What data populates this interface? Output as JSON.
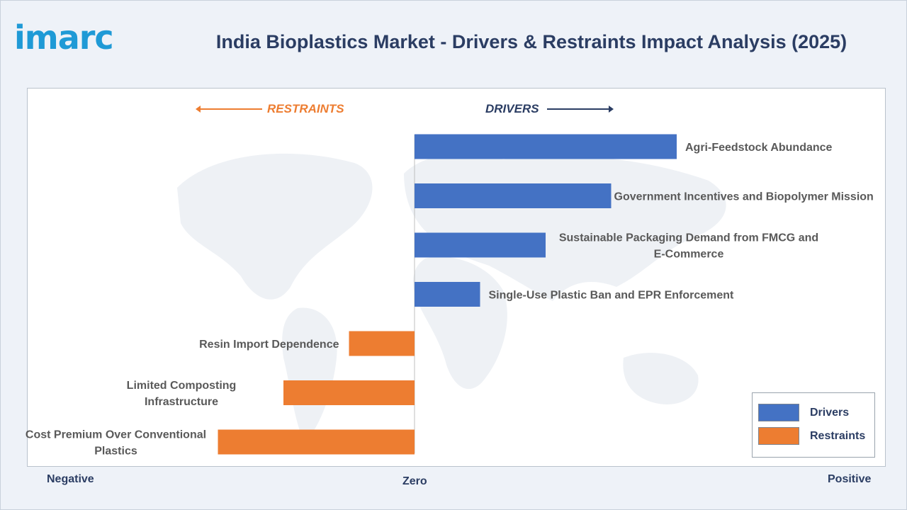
{
  "logo": {
    "text": "imarc"
  },
  "header": {
    "title": "India Bioplastics Market - Drivers & Restraints Impact Analysis (2025)"
  },
  "directions": {
    "restraints": "RESTRAINTS",
    "drivers": "DRIVERS"
  },
  "axis": {
    "negative": "Negative",
    "zero": "Zero",
    "positive": "Positive"
  },
  "legend": {
    "drivers": "Drivers",
    "restraints": "Restraints"
  },
  "colors": {
    "drivers": "#4472c4",
    "restraints": "#ed7d31",
    "text": "#2b3d63",
    "label": "#595959"
  },
  "chart_data": {
    "type": "bar",
    "orientation": "horizontal",
    "title": "India Bioplastics Market - Drivers & Restraints Impact Analysis (2025)",
    "xlabel": "",
    "ylabel": "",
    "xlim": [
      -3,
      5
    ],
    "legend_position": "bottom-right",
    "grid": false,
    "categories": [
      "Agri-Feedstock Abundance",
      "Government Incentives and Biopolymer Mission",
      "Sustainable Packaging Demand from FMCG and E-Commerce",
      "Single-Use Plastic Ban and EPR Enforcement",
      "Resin Import Dependence",
      "Limited Composting Infrastructure",
      "Cost Premium Over Conventional Plastics"
    ],
    "series": [
      {
        "name": "Drivers",
        "values": [
          4.0,
          3.0,
          2.0,
          1.0,
          null,
          null,
          null
        ]
      },
      {
        "name": "Restraints",
        "values": [
          null,
          null,
          null,
          null,
          -1.0,
          -2.0,
          -3.0
        ]
      }
    ]
  }
}
